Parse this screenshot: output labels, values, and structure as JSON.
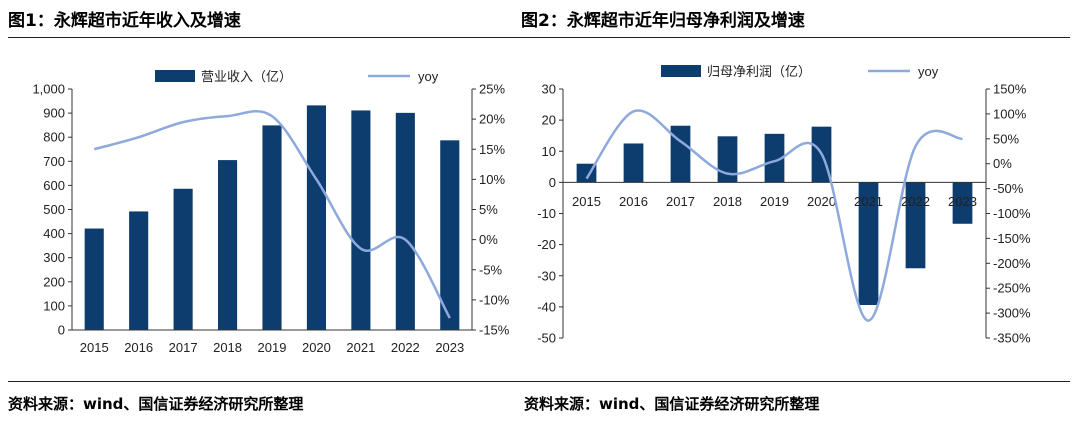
{
  "figures": {
    "left": {
      "title": "图1：永辉超市近年收入及增速",
      "source": "资料来源：wind、国信证券经济研究所整理"
    },
    "right": {
      "title": "图2：永辉超市近年归母净利润及增速",
      "source": "资料来源：wind、国信证券经济研究所整理"
    }
  },
  "colors": {
    "bar": "#0d3c6e",
    "line": "#8ea9db",
    "axis": "#333333"
  },
  "chart_data": [
    {
      "type": "bar+line",
      "title": "图1：永辉超市近年收入及增速",
      "categories": [
        "2015",
        "2016",
        "2017",
        "2018",
        "2019",
        "2020",
        "2021",
        "2022",
        "2023"
      ],
      "series": [
        {
          "name": "营业收入（亿）",
          "kind": "bar",
          "axis": "left",
          "values": [
            421,
            492,
            586,
            705,
            849,
            932,
            911,
            901,
            787
          ]
        },
        {
          "name": "yoy",
          "kind": "line",
          "axis": "right",
          "unit": "%",
          "values": [
            15,
            17,
            19.5,
            20.5,
            20.5,
            10,
            -1.5,
            0,
            -13
          ]
        }
      ],
      "left_axis": {
        "min": 0,
        "max": 1000,
        "step": 100,
        "tick_labels": [
          "0",
          "100",
          "200",
          "300",
          "400",
          "500",
          "600",
          "700",
          "800",
          "900",
          "1,000"
        ]
      },
      "right_axis": {
        "min": -15,
        "max": 25,
        "step": 5,
        "tick_labels": [
          "-15%",
          "-10%",
          "-5%",
          "0%",
          "5%",
          "10%",
          "15%",
          "20%",
          "25%"
        ]
      },
      "legend_position": "top-center"
    },
    {
      "type": "bar+line",
      "title": "图2：永辉超市近年归母净利润及增速",
      "categories": [
        "2015",
        "2016",
        "2017",
        "2018",
        "2019",
        "2020",
        "2021",
        "2022",
        "2023"
      ],
      "series": [
        {
          "name": "归母净利润（亿）",
          "kind": "bar",
          "axis": "left",
          "values": [
            6,
            12.5,
            18.2,
            14.8,
            15.6,
            17.9,
            -39.4,
            -27.6,
            -13.3
          ]
        },
        {
          "name": "yoy",
          "kind": "line",
          "axis": "right",
          "unit": "%",
          "values": [
            -30,
            105,
            45,
            -20,
            5,
            20,
            -315,
            35,
            50
          ]
        }
      ],
      "left_axis": {
        "min": -50,
        "max": 30,
        "step": 10,
        "tick_labels": [
          "-50",
          "-40",
          "-30",
          "-20",
          "-10",
          "0",
          "10",
          "20",
          "30"
        ]
      },
      "right_axis": {
        "min": -350,
        "max": 150,
        "step": 50,
        "tick_labels": [
          "-350%",
          "-300%",
          "-250%",
          "-200%",
          "-150%",
          "-100%",
          "-50%",
          "0%",
          "50%",
          "100%",
          "150%"
        ]
      },
      "legend_position": "top-center"
    }
  ]
}
